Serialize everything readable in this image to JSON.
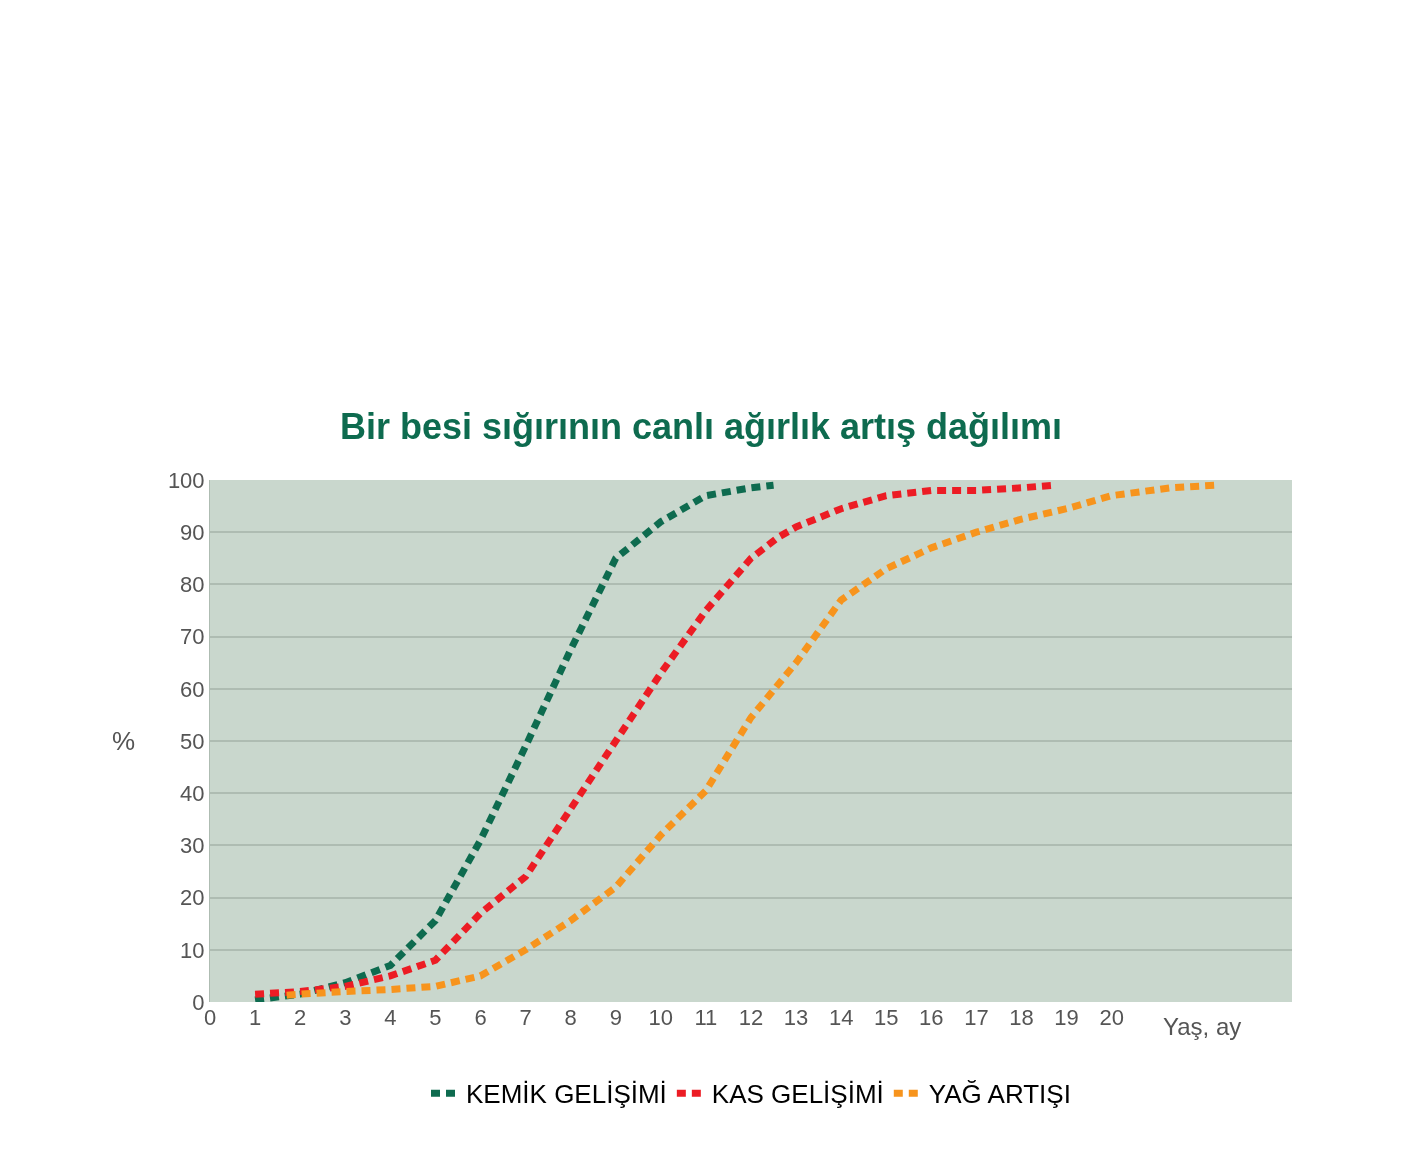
{
  "chart_data": {
    "type": "line",
    "title": "Bir besi sığırının canlı ağırlık artış dağılımı",
    "xlabel": "Yaş, ay",
    "ylabel": "%",
    "xlim": [
      0,
      24
    ],
    "xticks": [
      0,
      1,
      2,
      3,
      4,
      5,
      6,
      7,
      8,
      9,
      10,
      11,
      12,
      13,
      14,
      15,
      16,
      17,
      18,
      19,
      20
    ],
    "ylim": [
      0,
      100
    ],
    "yticks": [
      0,
      10,
      20,
      30,
      40,
      50,
      60,
      70,
      80,
      90,
      100
    ],
    "grid": "y",
    "legend": "bottom",
    "line_style": "dotted",
    "marker": "none",
    "series": [
      {
        "name": "KEMİK GELİŞİMİ",
        "color": "#0e6b4f",
        "x": [
          1,
          2,
          3,
          4,
          5,
          6,
          7,
          8,
          9,
          10,
          11,
          12,
          12.5
        ],
        "values": [
          0.4,
          1.5,
          3.7,
          7,
          15.6,
          31,
          49,
          67.5,
          85,
          92,
          97,
          98.5,
          99
        ]
      },
      {
        "name": "KAS GELİŞİMİ",
        "color": "#ec1c24",
        "x": [
          1,
          2,
          3,
          4,
          5,
          6,
          7,
          8,
          9,
          10,
          11,
          12,
          12.6,
          13,
          14,
          15,
          16,
          17,
          18,
          18.7
        ],
        "values": [
          1.5,
          2,
          3,
          5,
          8,
          17,
          24,
          37,
          50,
          63,
          75,
          85,
          89,
          91,
          94.5,
          97,
          98,
          98,
          98.5,
          99
        ]
      },
      {
        "name": "YAĞ ARTIŞI",
        "color": "#f7941d",
        "x": [
          1.7,
          2,
          3,
          4,
          5,
          6,
          7,
          8,
          9,
          10,
          11,
          12,
          13,
          14,
          15,
          16,
          17,
          18,
          19,
          20,
          21.3,
          22.3
        ],
        "values": [
          1.3,
          1.5,
          2,
          2.4,
          3,
          5,
          10,
          15.6,
          22,
          32,
          40.5,
          54.5,
          65,
          77,
          83,
          87,
          90,
          92.5,
          94.5,
          97,
          98.5,
          99
        ]
      }
    ]
  }
}
